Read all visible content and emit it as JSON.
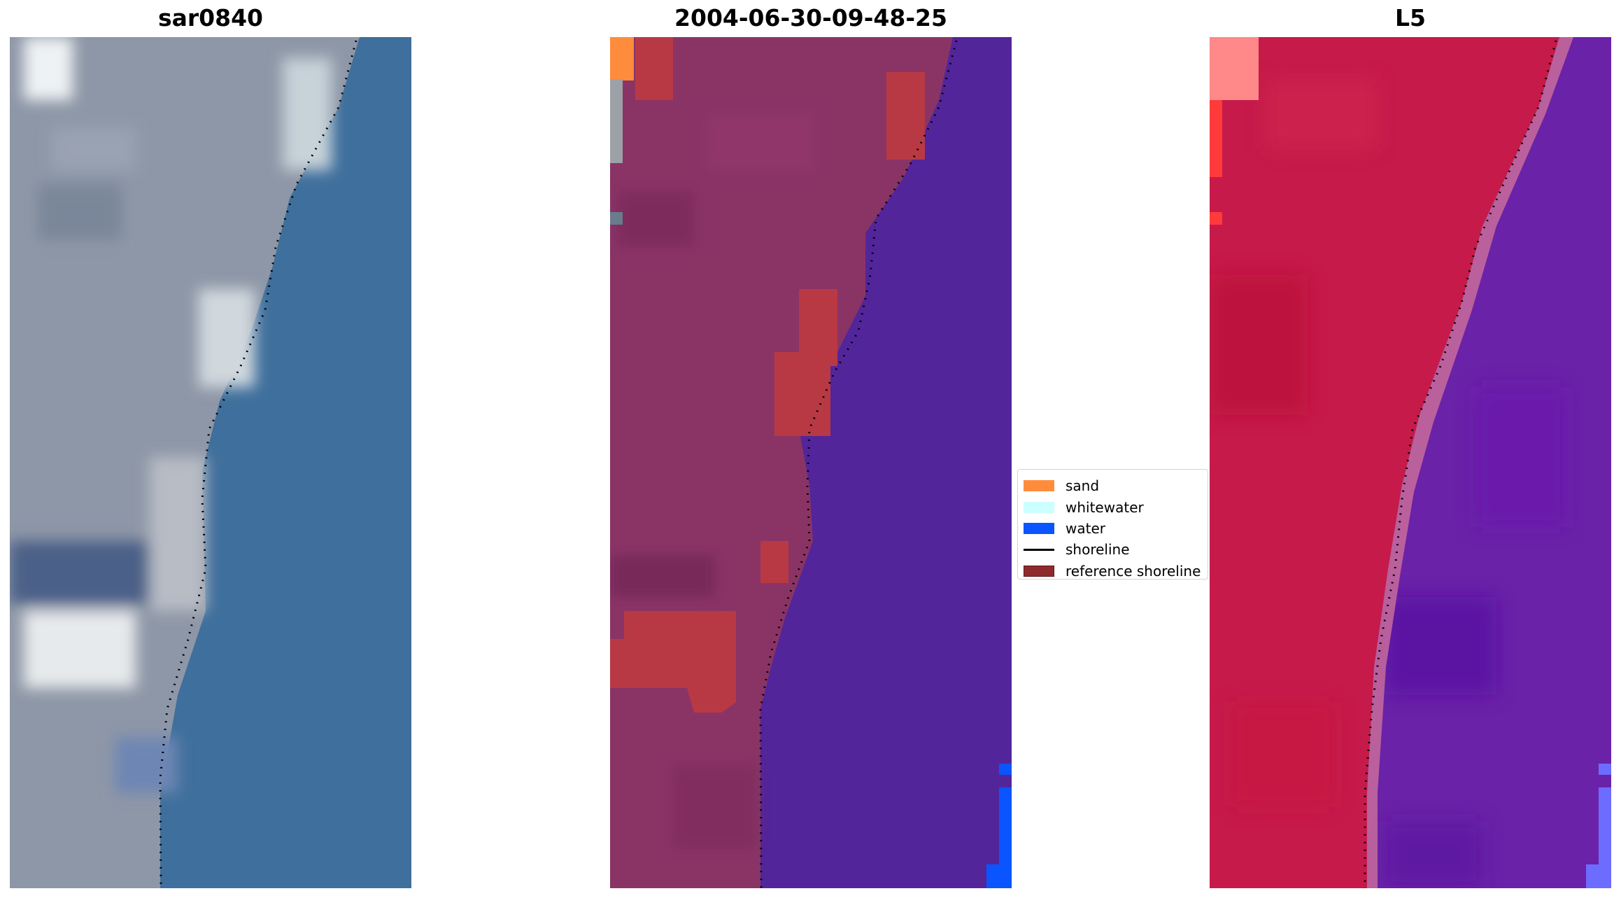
{
  "panels": [
    {
      "title": "sar0840",
      "kind": "rgb"
    },
    {
      "title": "2004-06-30-09-48-25",
      "kind": "classified"
    },
    {
      "title": "L5",
      "kind": "false-color"
    }
  ],
  "legend": {
    "items": [
      {
        "label": "sand",
        "color": "#ff8c3c",
        "type": "patch"
      },
      {
        "label": "whitewater",
        "color": "#ccffff",
        "type": "patch"
      },
      {
        "label": "water",
        "color": "#0a55ff",
        "type": "patch"
      },
      {
        "label": "shoreline",
        "color": "#000000",
        "type": "line"
      },
      {
        "label": "reference shoreline",
        "color": "#8f2a2c",
        "type": "patch"
      }
    ]
  },
  "colors": {
    "land_rgb": "#8c95a6",
    "sea_rgb": "#3f6f9c",
    "land_classified": "#8a3466",
    "sea_classified": "#53259a",
    "reference_shoreline": "#b83944",
    "land_falsecolor": "#c61a4a",
    "sea_falsecolor": "#6a22a8"
  }
}
